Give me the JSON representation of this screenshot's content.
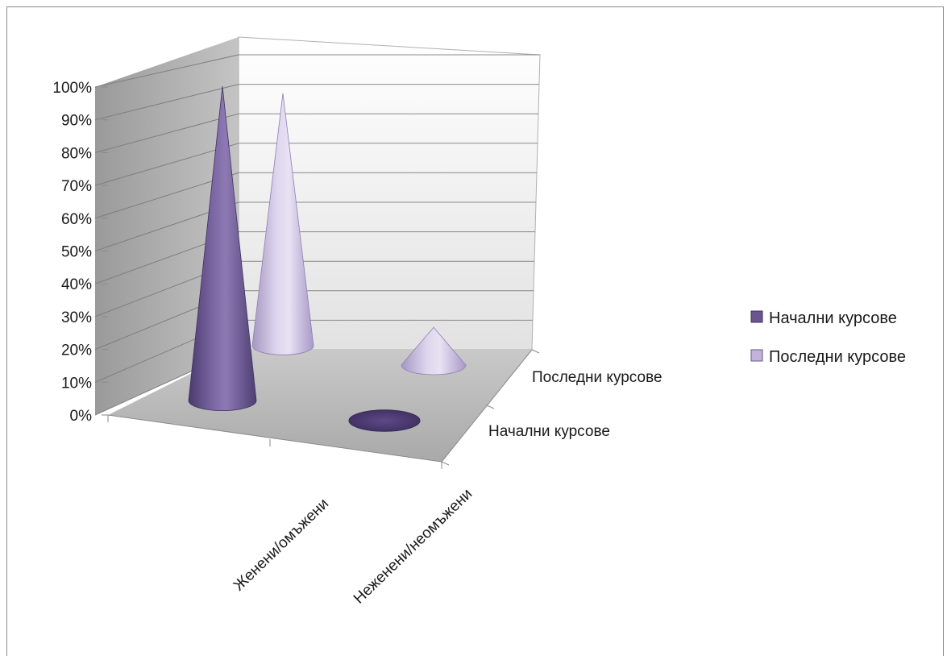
{
  "chart_data": {
    "type": "bar",
    "subtype": "3d-cone",
    "categories": [
      "Неженени/неомъжени",
      "Женени/омъжени"
    ],
    "depth_categories": [
      "Начални курсове",
      "Последни курсове"
    ],
    "series": [
      {
        "name": "Начални курсове",
        "values": [
          1.0,
          0.0
        ],
        "color": "#6a568f"
      },
      {
        "name": "Последни курсове",
        "values": [
          0.87,
          0.13
        ],
        "color": "#c1b3da"
      }
    ],
    "yticks": [
      "0%",
      "10%",
      "20%",
      "30%",
      "40%",
      "50%",
      "60%",
      "70%",
      "80%",
      "90%",
      "100%"
    ],
    "ylim": [
      0,
      1
    ],
    "grid": true,
    "legend": "right"
  }
}
